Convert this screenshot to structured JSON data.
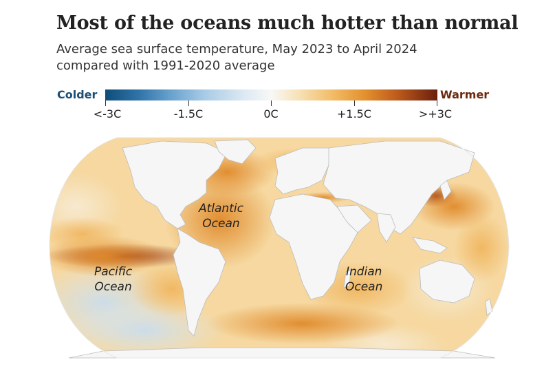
{
  "title": "Most of the oceans much hotter than normal",
  "subtitle": {
    "line1": "Average sea surface temperature, May 2023 to April 2024",
    "line2": "compared with 1991-2020 average"
  },
  "legend": {
    "cold_label": "Colder",
    "warm_label": "Warmer",
    "ticks": [
      "<-3C",
      "-1.5C",
      "0C",
      "+1.5C",
      ">+3C"
    ],
    "tick_values": [
      -3,
      -1.5,
      0,
      1.5,
      3
    ],
    "colors": {
      "cold_text": "#1d4e73",
      "warm_text": "#6b2a10",
      "cold_end": "#0f4d7a",
      "neutral": "#f8f8f6",
      "warm_end": "#6a1f0d"
    }
  },
  "map": {
    "projection": "Robinson (world)",
    "labels": {
      "atlantic_1": "Atlantic",
      "atlantic_2": "Ocean",
      "pacific_1": "Pacific",
      "pacific_2": "Ocean",
      "indian_1": "Indian",
      "indian_2": "Ocean"
    },
    "colors": {
      "land": "#f6f6f6",
      "border": "#b9b9b9",
      "ocean_base": "#f7dca8",
      "warm_anomaly": "#e59a3e",
      "strong_anomaly": "#b9531a",
      "cool_patch": "#dce9f3"
    }
  }
}
